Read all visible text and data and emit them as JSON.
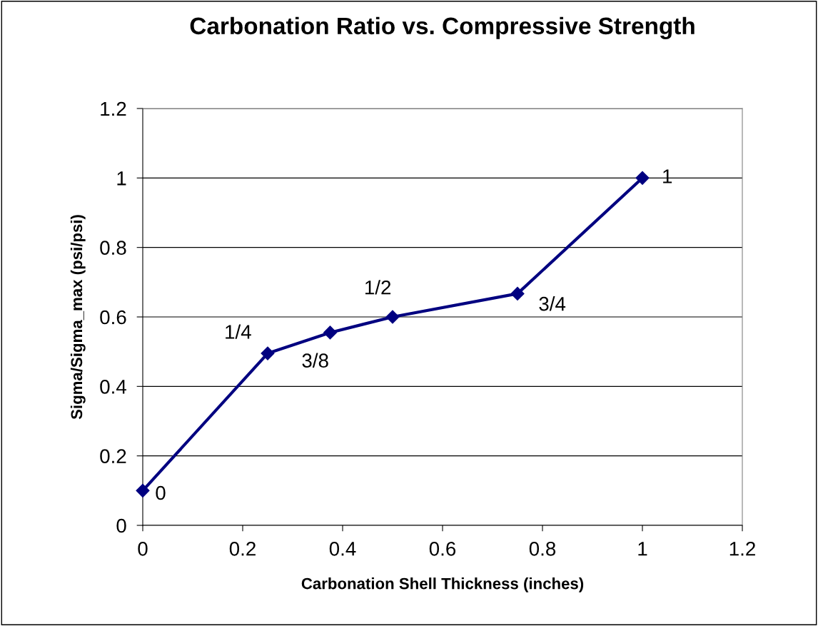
{
  "chart_data": {
    "type": "line",
    "title": "Carbonation Ratio vs. Compressive Strength",
    "xlabel": "Carbonation Shell Thickness (inches)",
    "ylabel": "Sigma/Sigma_max (psi/psi)",
    "x": [
      0,
      0.25,
      0.375,
      0.5,
      0.75,
      1
    ],
    "series": [
      {
        "color": "#000080",
        "values": [
          0.1,
          0.495,
          0.555,
          0.6,
          0.667,
          1.0
        ]
      }
    ],
    "xlim": [
      0,
      1.2
    ],
    "xticks": [
      0,
      0.2,
      0.4,
      0.6,
      0.8,
      1,
      1.2
    ],
    "ylim": [
      0,
      1.2
    ],
    "yticks": [
      0,
      0.2,
      0.4,
      0.6,
      0.8,
      1,
      1.2
    ],
    "grid": "y",
    "marker": "diamond",
    "line_style": "solid",
    "legend": false,
    "annotations": [
      {
        "text": "0",
        "x": 0,
        "y": 0.1
      },
      {
        "text": "1/4",
        "x": 0.25,
        "y": 0.495
      },
      {
        "text": "3/8",
        "x": 0.375,
        "y": 0.555
      },
      {
        "text": "1/2",
        "x": 0.5,
        "y": 0.6
      },
      {
        "text": "3/4",
        "x": 0.75,
        "y": 0.667
      },
      {
        "text": "1",
        "x": 1,
        "y": 1.0
      }
    ]
  }
}
